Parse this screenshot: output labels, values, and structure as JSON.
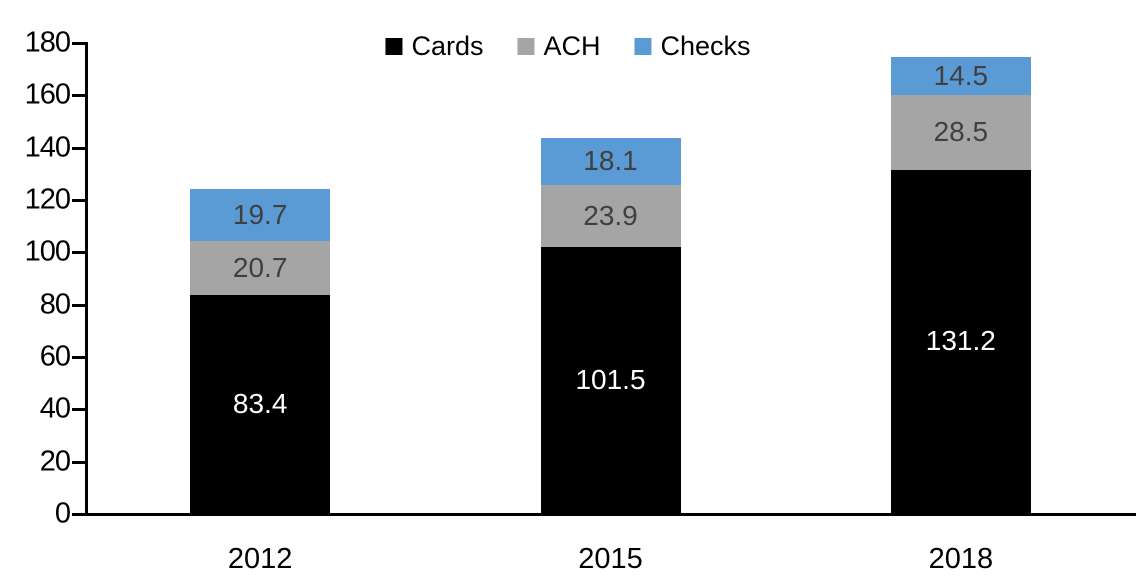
{
  "chart_data": {
    "type": "bar",
    "stacked": true,
    "title": "",
    "xlabel": "",
    "ylabel": "",
    "categories": [
      "2012",
      "2015",
      "2018"
    ],
    "series": [
      {
        "name": "Cards",
        "color": "#000000",
        "label_color": "#ffffff",
        "values": [
          83.4,
          101.5,
          131.2
        ]
      },
      {
        "name": "ACH",
        "color": "#a5a5a5",
        "label_color": "#404040",
        "values": [
          20.7,
          23.9,
          28.5
        ]
      },
      {
        "name": "Checks",
        "color": "#5b9bd5",
        "label_color": "#404040",
        "values": [
          19.7,
          18.1,
          14.5
        ]
      }
    ],
    "totals": [
      123.8,
      143.5,
      174.2
    ],
    "ylim": [
      0,
      180
    ],
    "ytick_interval": 20,
    "yticks": [
      0,
      20,
      40,
      60,
      80,
      100,
      120,
      140,
      160,
      180
    ],
    "grid": false,
    "legend_position": "top-center",
    "axis_color": "#000000",
    "background_color": "#ffffff"
  }
}
